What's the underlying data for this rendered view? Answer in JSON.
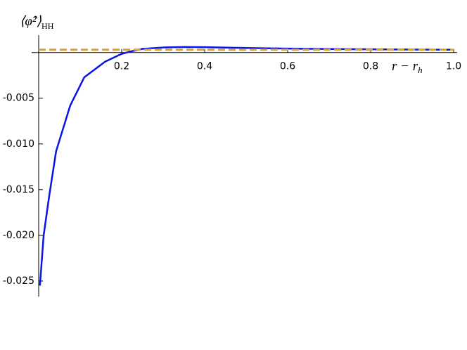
{
  "chart_data": {
    "type": "line",
    "y_label": {
      "main": "⟨φ̂²⟩",
      "subscript": "HH"
    },
    "x_label": {
      "main": "r − r",
      "subscript": "h"
    },
    "xlim": [
      0,
      1
    ],
    "ylim": [
      -0.0267,
      0.0019
    ],
    "xticks": [
      0.2,
      0.4,
      0.6,
      0.8,
      {
        "value": 1,
        "label": "1.0"
      }
    ],
    "yticks": [
      -0.005,
      {
        "value": -0.01,
        "label": "-0.010"
      },
      -0.015,
      {
        "value": -0.02,
        "label": "-0.020"
      },
      -0.025
    ],
    "series": [
      {
        "color": "#0a14e6",
        "x": [
          0.003,
          0.012,
          0.025,
          0.042,
          0.076,
          0.11,
          0.16,
          0.2,
          0.22,
          0.25,
          0.3,
          0.35,
          0.4,
          0.5,
          0.6,
          0.7,
          0.8,
          0.9,
          1.0
        ],
        "values": [
          -0.0255,
          -0.02,
          -0.0158,
          -0.0108,
          -0.0058,
          -0.0027,
          -0.001,
          -0.00015,
          0.0001,
          0.0004,
          0.00055,
          0.0006,
          0.00058,
          0.0005,
          0.00043,
          0.00038,
          0.00035,
          0.00032,
          0.0003
        ]
      },
      {
        "color": "#e0a030",
        "dashed": true,
        "x": [
          0,
          1
        ],
        "values": [
          0.0003,
          0.0003
        ]
      }
    ]
  }
}
